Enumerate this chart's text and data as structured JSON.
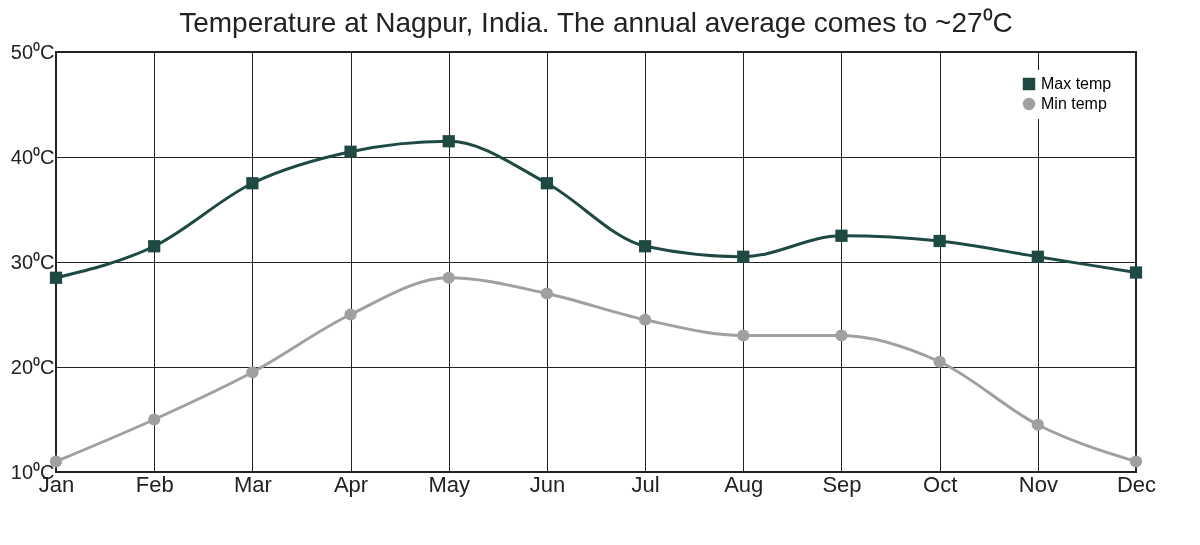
{
  "chart_data": {
    "type": "line",
    "title": "Temperature at Nagpur, India.  The annual average comes to ~27⁰C",
    "categories": [
      "Jan",
      "Feb",
      "Mar",
      "Apr",
      "May",
      "Jun",
      "Jul",
      "Aug",
      "Sep",
      "Oct",
      "Nov",
      "Dec"
    ],
    "series": [
      {
        "name": "Max temp",
        "color": "#1f4a44",
        "marker": "square",
        "values": [
          28.5,
          31.5,
          37.5,
          40.5,
          41.5,
          37.5,
          31.5,
          30.5,
          32.5,
          32,
          30.5,
          29
        ]
      },
      {
        "name": "Min temp",
        "color": "#a0a0a0",
        "marker": "circle",
        "values": [
          11,
          15,
          19.5,
          25,
          28.5,
          27,
          24.5,
          23,
          23,
          20.5,
          14.5,
          11
        ]
      }
    ],
    "ylim": [
      10,
      50
    ],
    "yticks": [
      {
        "value": 10,
        "label": "10⁰C"
      },
      {
        "value": 20,
        "label": "20⁰C"
      },
      {
        "value": 30,
        "label": "30⁰C"
      },
      {
        "value": 40,
        "label": "40⁰C"
      },
      {
        "value": 50,
        "label": "50⁰C"
      }
    ],
    "grid": true,
    "legend": "top right"
  }
}
